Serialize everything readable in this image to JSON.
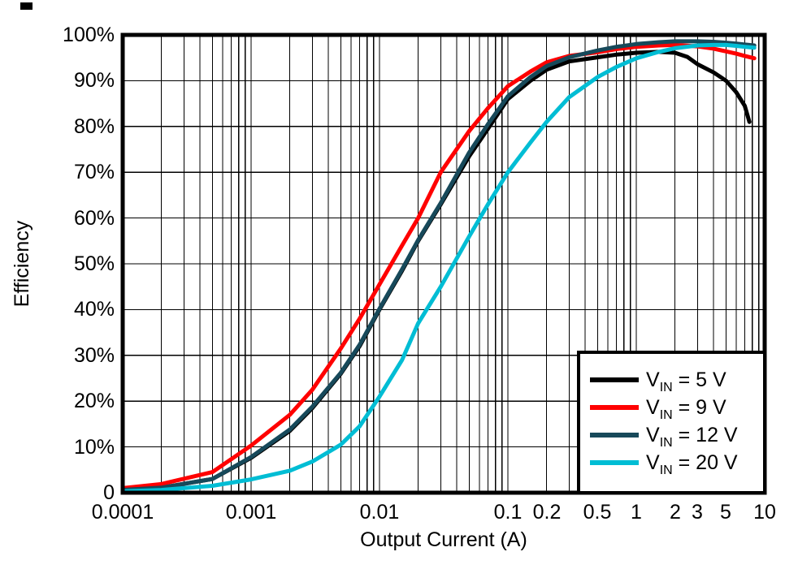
{
  "axes": {
    "x_title": "Output Current (A)",
    "y_title": "Efficiency"
  },
  "legend": {
    "position": "bottom-right",
    "entries": [
      {
        "symbol": "V",
        "subscript": "IN",
        "rest": " = 5 V",
        "color": "#000000"
      },
      {
        "symbol": "V",
        "subscript": "IN",
        "rest": " = 9 V",
        "color": "#FF0000"
      },
      {
        "symbol": "V",
        "subscript": "IN",
        "rest": " = 12 V",
        "color": "#17495A"
      },
      {
        "symbol": "V",
        "subscript": "IN",
        "rest": " = 20 V",
        "color": "#00BDD4"
      }
    ]
  },
  "chart_data": {
    "type": "line",
    "title": "",
    "xlabel": "Output Current (A)",
    "ylabel": "Efficiency",
    "x_scale": "log",
    "xlim": [
      0.0001,
      10
    ],
    "ylim": [
      0,
      100
    ],
    "grid": true,
    "legend_position": "bottom-right",
    "x_ticks": [
      {
        "value": 0.0001,
        "label": "0.0001"
      },
      {
        "value": 0.001,
        "label": "0.001"
      },
      {
        "value": 0.01,
        "label": "0.01"
      },
      {
        "value": 0.1,
        "label": "0.1"
      },
      {
        "value": 0.2,
        "label": "0.2"
      },
      {
        "value": 0.5,
        "label": "0.5"
      },
      {
        "value": 1,
        "label": "1"
      },
      {
        "value": 2,
        "label": "2"
      },
      {
        "value": 3,
        "label": "3"
      },
      {
        "value": 5,
        "label": "5"
      },
      {
        "value": 10,
        "label": "10"
      }
    ],
    "y_ticks": [
      {
        "value": 100,
        "label": "100%"
      },
      {
        "value": 90,
        "label": "90%"
      },
      {
        "value": 80,
        "label": "80%"
      },
      {
        "value": 70,
        "label": "70%"
      },
      {
        "value": 60,
        "label": "60%"
      },
      {
        "value": 50,
        "label": "50%"
      },
      {
        "value": 40,
        "label": "40%"
      },
      {
        "value": 30,
        "label": "30%"
      },
      {
        "value": 20,
        "label": "20%"
      },
      {
        "value": 10,
        "label": "10%"
      },
      {
        "value": 0,
        "label": "0"
      }
    ],
    "series": [
      {
        "name": "VIN = 5 V",
        "color": "#000000",
        "points": [
          [
            0.0001,
            0.6
          ],
          [
            0.0002,
            1.1
          ],
          [
            0.0005,
            3.0
          ],
          [
            0.001,
            7.6
          ],
          [
            0.002,
            13.5
          ],
          [
            0.003,
            18.5
          ],
          [
            0.005,
            26
          ],
          [
            0.007,
            32
          ],
          [
            0.01,
            40
          ],
          [
            0.015,
            48.5
          ],
          [
            0.02,
            55
          ],
          [
            0.03,
            63
          ],
          [
            0.05,
            73.5
          ],
          [
            0.07,
            79.5
          ],
          [
            0.1,
            86
          ],
          [
            0.15,
            90
          ],
          [
            0.2,
            92.4
          ],
          [
            0.3,
            94.2
          ],
          [
            0.5,
            95.1
          ],
          [
            0.7,
            95.7
          ],
          [
            1,
            96.1
          ],
          [
            1.5,
            96.3
          ],
          [
            2,
            96.1
          ],
          [
            2.5,
            95.2
          ],
          [
            3,
            93.6
          ],
          [
            4,
            91.8
          ],
          [
            5,
            90
          ],
          [
            6,
            87.5
          ],
          [
            7,
            84.5
          ],
          [
            7.6,
            81
          ]
        ]
      },
      {
        "name": "VIN = 9 V",
        "color": "#FF0000",
        "points": [
          [
            0.0001,
            1.0
          ],
          [
            0.0002,
            1.9
          ],
          [
            0.0005,
            4.5
          ],
          [
            0.001,
            10.3
          ],
          [
            0.002,
            17
          ],
          [
            0.003,
            22.5
          ],
          [
            0.005,
            31.5
          ],
          [
            0.007,
            38
          ],
          [
            0.01,
            45.5
          ],
          [
            0.015,
            54
          ],
          [
            0.02,
            60
          ],
          [
            0.03,
            70
          ],
          [
            0.05,
            79
          ],
          [
            0.07,
            84
          ],
          [
            0.1,
            88.8
          ],
          [
            0.15,
            92
          ],
          [
            0.2,
            94
          ],
          [
            0.3,
            95.4
          ],
          [
            0.5,
            96.2
          ],
          [
            0.7,
            96.9
          ],
          [
            1,
            97.4
          ],
          [
            1.5,
            97.7
          ],
          [
            2,
            97.8
          ],
          [
            3,
            97.5
          ],
          [
            4,
            97
          ],
          [
            5,
            96.4
          ],
          [
            6,
            95.9
          ],
          [
            7,
            95.4
          ],
          [
            8.3,
            94.9
          ]
        ]
      },
      {
        "name": "VIN = 12 V",
        "color": "#17495A",
        "points": [
          [
            0.0001,
            0.6
          ],
          [
            0.0002,
            1.1
          ],
          [
            0.0005,
            3.0
          ],
          [
            0.001,
            7.8
          ],
          [
            0.002,
            13.8
          ],
          [
            0.003,
            18.8
          ],
          [
            0.005,
            26.2
          ],
          [
            0.007,
            32.3
          ],
          [
            0.01,
            40.2
          ],
          [
            0.015,
            48.8
          ],
          [
            0.02,
            55.2
          ],
          [
            0.03,
            63.3
          ],
          [
            0.05,
            74.3
          ],
          [
            0.07,
            80.5
          ],
          [
            0.1,
            86.6
          ],
          [
            0.15,
            90.8
          ],
          [
            0.2,
            93.2
          ],
          [
            0.3,
            95.1
          ],
          [
            0.5,
            96.6
          ],
          [
            0.7,
            97.4
          ],
          [
            1,
            98
          ],
          [
            1.5,
            98.4
          ],
          [
            2,
            98.6
          ],
          [
            3,
            98.6
          ],
          [
            4,
            98.5
          ],
          [
            5,
            98.3
          ],
          [
            6,
            98.1
          ],
          [
            7,
            97.9
          ],
          [
            8.3,
            97.7
          ]
        ]
      },
      {
        "name": "VIN = 20 V",
        "color": "#00BDD4",
        "points": [
          [
            0.0001,
            0.3
          ],
          [
            0.0002,
            0.6
          ],
          [
            0.0005,
            1.5
          ],
          [
            0.001,
            2.9
          ],
          [
            0.002,
            4.8
          ],
          [
            0.003,
            6.8
          ],
          [
            0.005,
            10.5
          ],
          [
            0.007,
            14.5
          ],
          [
            0.01,
            21
          ],
          [
            0.015,
            29
          ],
          [
            0.02,
            37
          ],
          [
            0.03,
            45
          ],
          [
            0.05,
            56
          ],
          [
            0.07,
            63
          ],
          [
            0.1,
            70
          ],
          [
            0.15,
            76.5
          ],
          [
            0.2,
            81
          ],
          [
            0.3,
            86.4
          ],
          [
            0.5,
            90.8
          ],
          [
            0.7,
            93
          ],
          [
            1,
            94.9
          ],
          [
            1.5,
            96.3
          ],
          [
            2,
            97.1
          ],
          [
            3,
            97.7
          ],
          [
            4,
            97.8
          ],
          [
            5,
            97.8
          ],
          [
            6,
            97.6
          ],
          [
            7,
            97.4
          ],
          [
            8.3,
            97.2
          ]
        ]
      }
    ]
  }
}
